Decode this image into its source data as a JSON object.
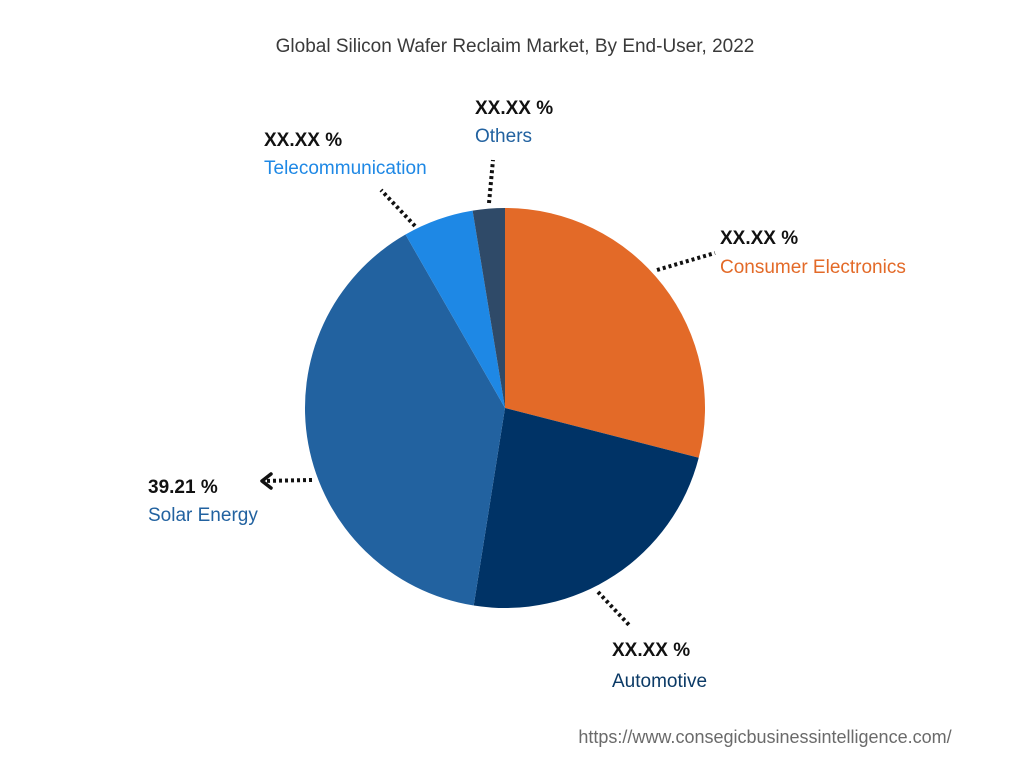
{
  "chart_data": {
    "type": "pie",
    "title": "Global Silicon Wafer Reclaim Market, By End-User, 2022",
    "slices": [
      {
        "label": "Consumer Electronics",
        "value_label": "XX.XX %",
        "value": 29.0,
        "color": "#E36A28"
      },
      {
        "label": "Automotive",
        "value_label": "XX.XX %",
        "value": 23.5,
        "color": "#003366"
      },
      {
        "label": "Solar Energy",
        "value_label": "39.21 %",
        "value": 39.21,
        "color": "#2262A0"
      },
      {
        "label": "Telecommunication",
        "value_label": "XX.XX %",
        "value": 5.7,
        "color": "#1E88E5"
      },
      {
        "label": "Others",
        "value_label": "XX.XX %",
        "value": 2.59,
        "color": "#2F4A68"
      }
    ],
    "start_angle_deg": 0,
    "direction": "clockwise"
  },
  "footer": {
    "url": "https://www.consegicbusinessintelligence.com/"
  }
}
